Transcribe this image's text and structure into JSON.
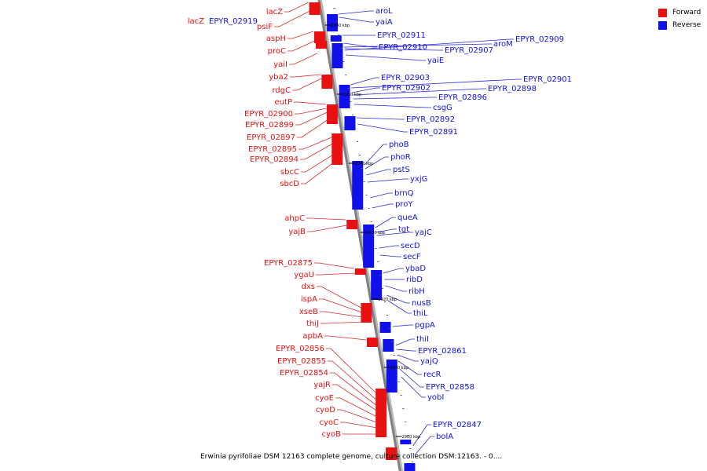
{
  "caption": "Erwinia pyrifoliae DSM 12163 complete genome, culture collection DSM:12163. - 0....",
  "legend": [
    {
      "label": "Forward",
      "color": "#e81010"
    },
    {
      "label": "Reverse",
      "color": "#1010e8"
    }
  ],
  "colors": {
    "forward": "#e81010",
    "reverse": "#1010e8",
    "backbone": "#808080",
    "leader_forward": "#d42a2a",
    "leader_reverse": "#2a2ad4"
  },
  "scale_labels": [
    "2960 kbp",
    "2950 kbp",
    "2940 kbp",
    "2930 kbp",
    "2920 kbp",
    "2910 kbp",
    "2900 kbp"
  ],
  "forward_genes": [
    "lacZ",
    "lacZ",
    "psiF",
    "aspH",
    "proC",
    "yaiI",
    "yba2",
    "rdgC",
    "eutP",
    "EPYR_02900",
    "EPYR_02899",
    "EPYR_02897",
    "EPYR_02895",
    "EPYR_02894",
    "sbcC",
    "sbcD",
    "ahpC",
    "yajB",
    "EPYR_02875",
    "ygaU",
    "dxs",
    "ispA",
    "xseB",
    "thiJ",
    "apbA",
    "EPYR_02856",
    "EPYR_02855",
    "EPYR_02854",
    "yajR",
    "cyoE",
    "cyoD",
    "cyoC",
    "cyoB"
  ],
  "reverse_genes": [
    "EPYR_02919",
    "aroL",
    "yaiA",
    "EPYR_02911",
    "EPYR_02910",
    "EPYR_02907",
    "aroM",
    "EPYR_02909",
    "yaiE",
    "EPYR_02903",
    "EPYR_02901",
    "EPYR_02902",
    "EPYR_02898",
    "EPYR_02896",
    "csgG",
    "EPYR_02892",
    "EPYR_02891",
    "phoB",
    "phoR",
    "pstS",
    "yxjG",
    "brnQ",
    "proY",
    "queA",
    "tgt",
    "yajC",
    "secD",
    "secF",
    "ybaD",
    "ribD",
    "ribH",
    "nusB",
    "thiL",
    "pgpA",
    "thiI",
    "EPYR_02861",
    "yajQ",
    "recR",
    "EPYR_02858",
    "yobI",
    "EPYR_02847",
    "bolA"
  ]
}
